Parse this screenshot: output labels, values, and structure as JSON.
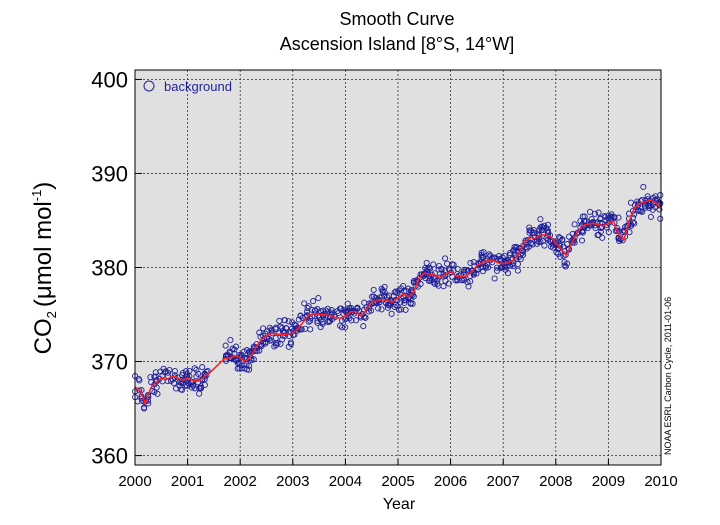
{
  "chart_data": {
    "type": "scatter",
    "title": "Smooth Curve",
    "subtitle": "Ascension Island [8°S, 14°W]",
    "xlabel": "Year",
    "ylabel": {
      "prefix": "CO",
      "sub": "2",
      "unit": "(μmol mol",
      "sup": "-1",
      "close": ")"
    },
    "xlim": [
      2000,
      2010
    ],
    "ylim": [
      359,
      401
    ],
    "x_ticks": [
      "2000",
      "2001",
      "2002",
      "2003",
      "2004",
      "2005",
      "2006",
      "2007",
      "2008",
      "2009",
      "2010"
    ],
    "y_ticks": [
      "360",
      "370",
      "380",
      "390",
      "400"
    ],
    "grid": true,
    "legend_position": "top-left",
    "credit": "NOAA ESRL Carbon Cycle, 2011-01-06",
    "colors": {
      "points": "#1f1f99",
      "curve": "#ff2020",
      "background": "#e0e0e0"
    },
    "series": [
      {
        "name": "background",
        "kind": "scatter",
        "cloud": {
          "base": "smooth-curve",
          "samples_per_year": 40,
          "spread": 1.2,
          "gaps": [
            [
              2001.4,
              2001.7
            ]
          ]
        }
      },
      {
        "kind": "line",
        "x": [
          2000.0,
          2000.1,
          2000.2,
          2000.3,
          2000.4,
          2000.5,
          2000.6,
          2000.7,
          2000.8,
          2000.9,
          2001.0,
          2001.1,
          2001.2,
          2001.3,
          2001.4,
          2001.7,
          2001.8,
          2001.9,
          2002.0,
          2002.1,
          2002.2,
          2002.3,
          2002.4,
          2002.5,
          2002.6,
          2002.7,
          2002.8,
          2002.9,
          2003.0,
          2003.1,
          2003.2,
          2003.3,
          2003.4,
          2003.5,
          2003.6,
          2003.7,
          2003.8,
          2003.9,
          2004.0,
          2004.1,
          2004.2,
          2004.3,
          2004.4,
          2004.5,
          2004.6,
          2004.7,
          2004.8,
          2004.9,
          2005.0,
          2005.1,
          2005.2,
          2005.3,
          2005.4,
          2005.5,
          2005.6,
          2005.7,
          2005.8,
          2005.9,
          2006.0,
          2006.1,
          2006.2,
          2006.3,
          2006.4,
          2006.5,
          2006.6,
          2006.7,
          2006.8,
          2006.9,
          2007.0,
          2007.1,
          2007.2,
          2007.3,
          2007.4,
          2007.5,
          2007.6,
          2007.7,
          2007.8,
          2007.9,
          2008.0,
          2008.1,
          2008.2,
          2008.3,
          2008.4,
          2008.5,
          2008.6,
          2008.7,
          2008.8,
          2008.9,
          2009.0,
          2009.1,
          2009.2,
          2009.3,
          2009.4,
          2009.5,
          2009.6,
          2009.7,
          2009.8,
          2009.9,
          2010.0
        ],
        "y": [
          367.3,
          366.9,
          365.5,
          367.2,
          367.8,
          368.2,
          368.1,
          368.4,
          368.3,
          368.0,
          368.2,
          368.0,
          367.9,
          368.3,
          368.7,
          370.3,
          370.4,
          370.6,
          370.4,
          370.0,
          370.5,
          371.5,
          372.3,
          372.7,
          373.0,
          372.9,
          372.9,
          372.9,
          373.0,
          373.5,
          374.2,
          374.9,
          375.1,
          375.0,
          375.0,
          374.9,
          374.7,
          374.6,
          374.8,
          375.3,
          375.3,
          374.8,
          375.5,
          376.3,
          376.5,
          376.6,
          376.5,
          376.3,
          376.8,
          377.2,
          376.9,
          377.4,
          378.8,
          379.4,
          379.3,
          379.2,
          378.9,
          379.3,
          379.6,
          379.1,
          379.0,
          379.1,
          379.5,
          380.2,
          380.5,
          380.7,
          380.8,
          380.5,
          380.4,
          380.5,
          380.8,
          381.5,
          382.6,
          383.2,
          383.1,
          383.4,
          383.5,
          383.3,
          382.6,
          382.0,
          381.3,
          382.5,
          383.6,
          384.4,
          384.6,
          384.7,
          384.6,
          384.4,
          384.7,
          384.9,
          383.5,
          383.0,
          385.0,
          386.4,
          386.8,
          387.0,
          387.2,
          386.9,
          386.3
        ]
      }
    ]
  }
}
